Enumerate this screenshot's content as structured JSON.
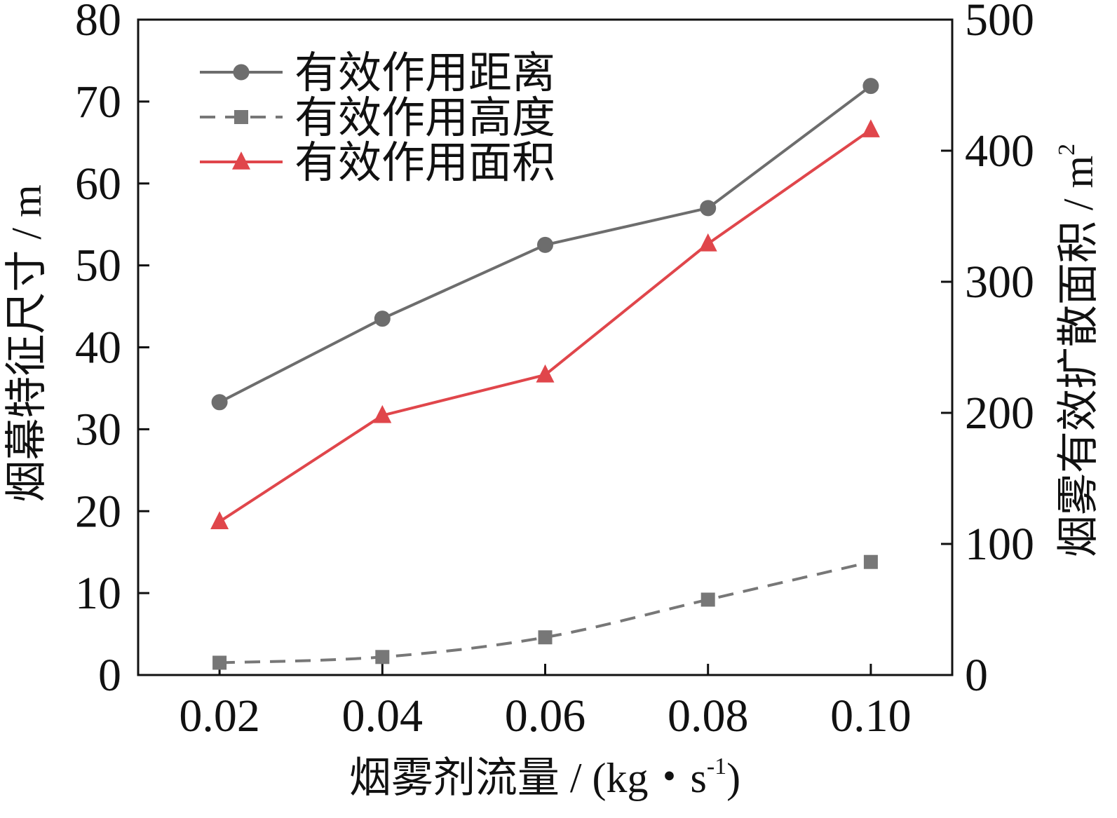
{
  "chart_data": {
    "type": "line",
    "title": "",
    "xlabel": "烟雾剂流量 / (kg・s",
    "xlabel_sup": "-1",
    "xlabel_tail": ")",
    "ylabel_left": "烟幕特征尺寸 / m",
    "ylabel_right": "烟雾有效扩散面积 / m",
    "ylabel_right_sup": "2",
    "x": [
      0.02,
      0.04,
      0.06,
      0.08,
      0.1
    ],
    "x_tick_labels": [
      "0.02",
      "0.04",
      "0.06",
      "0.08",
      "0.10"
    ],
    "xlim": [
      0.01,
      0.11
    ],
    "ylim_left": [
      0,
      80
    ],
    "ylim_right": [
      0,
      500
    ],
    "y_left_ticks": [
      "0",
      "10",
      "20",
      "30",
      "40",
      "50",
      "60",
      "70",
      "80"
    ],
    "y_right_ticks": [
      "0",
      "100",
      "200",
      "300",
      "400",
      "500"
    ],
    "grid": false,
    "legend_position": "top-left",
    "series": [
      {
        "name": "有效作用距离",
        "axis": "left",
        "values": [
          33.3,
          43.5,
          52.5,
          57.0,
          71.9
        ],
        "color": "#6d6d6d",
        "marker": "circle",
        "line": "solid"
      },
      {
        "name": "有效作用高度",
        "axis": "left",
        "values": [
          1.5,
          2.2,
          4.6,
          9.2,
          13.8
        ],
        "color": "#777777",
        "marker": "square",
        "line": "dashed"
      },
      {
        "name": "有效作用面积",
        "axis": "right",
        "values": [
          117,
          198,
          229,
          329,
          416
        ],
        "color": "#e0464b",
        "marker": "triangle",
        "line": "solid"
      }
    ]
  }
}
